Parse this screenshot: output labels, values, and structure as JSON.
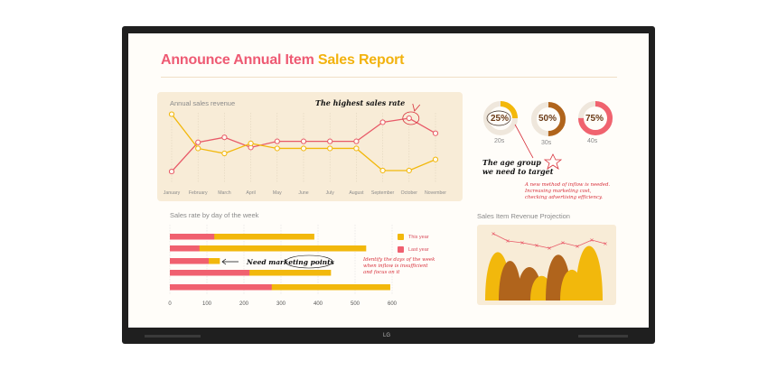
{
  "report": {
    "title_part1": "Announce Annual Item ",
    "title_part2": "Sales Report"
  },
  "annual_chart": {
    "label": "Annual sales revenue",
    "note": "The highest sales rate",
    "months": [
      "January",
      "February",
      "March",
      "April",
      "May",
      "June",
      "July",
      "August",
      "September",
      "October",
      "November"
    ],
    "series": [
      {
        "name": "red",
        "color": "#e85a68",
        "values": [
          3.8,
          6.7,
          7.2,
          6.2,
          6.8,
          6.8,
          6.8,
          6.8,
          8.7,
          9.1,
          7.6
        ]
      },
      {
        "name": "yellow",
        "color": "#f2b80c",
        "values": [
          9.5,
          6.1,
          5.6,
          6.6,
          6.1,
          6.1,
          6.1,
          6.1,
          3.9,
          3.9,
          5.0
        ]
      }
    ]
  },
  "donuts": [
    {
      "value": "25%",
      "label": "20s",
      "percent": 25,
      "color": "#f3b80a"
    },
    {
      "value": "50%",
      "label": "30s",
      "percent": 50,
      "color": "#b0641c"
    },
    {
      "value": "75%",
      "label": "40s",
      "percent": 75,
      "color": "#f0636f"
    }
  ],
  "notes": {
    "age_group": "The age group\nwe need to target",
    "inflow": "A new method of inflow is needed.\nIncreasing marketing cost,\nchecking advertising efficiency.",
    "marketing": "Need marketing points",
    "days": "Identify the days of the week\nwhen inflow is insufficient\nand focus on it"
  },
  "weekly_chart": {
    "label": "Sales rate by day of the week",
    "legend": {
      "this_year": "This year",
      "last_year": "Last year"
    },
    "ticks": [
      "0",
      "100",
      "200",
      "300",
      "400",
      "500",
      "600"
    ],
    "chart_data": {
      "type": "bar",
      "series": [
        {
          "name": "This year",
          "values": [
            390,
            530,
            135,
            435,
            595
          ]
        },
        {
          "name": "Last year",
          "values": [
            120,
            80,
            105,
            215,
            275
          ]
        }
      ],
      "xlim": [
        0,
        600
      ]
    }
  },
  "projection": {
    "label": "Sales Item Revenue Projection"
  },
  "device": {
    "logo": "LG"
  }
}
